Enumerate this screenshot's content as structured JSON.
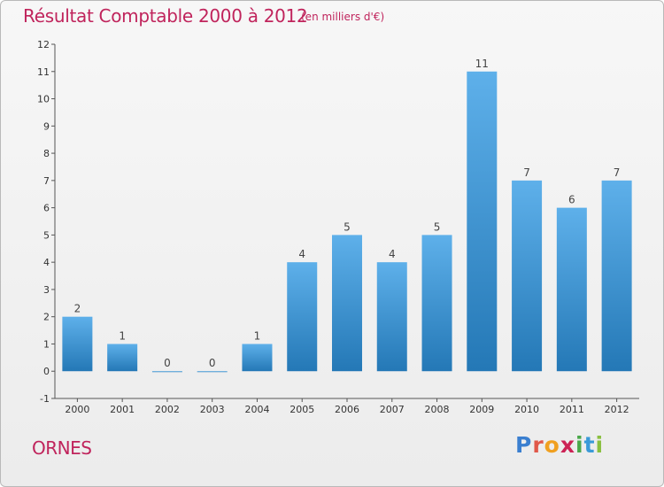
{
  "title": "Résultat Comptable 2000 à 2012",
  "subtitle": "(en milliers d'€)",
  "commune": "ORNES",
  "logo": {
    "letters": [
      {
        "ch": "P",
        "color": "#3a7fd0"
      },
      {
        "ch": "r",
        "color": "#e0584a"
      },
      {
        "ch": "o",
        "color": "#f0a020"
      },
      {
        "ch": "x",
        "color": "#cc2255"
      },
      {
        "ch": "i",
        "color": "#4aa84a"
      },
      {
        "ch": "t",
        "color": "#3a9ad8"
      },
      {
        "ch": "i",
        "color": "#8ac040"
      }
    ]
  },
  "colors": {
    "bar_top": "#5eb0ea",
    "bar_bottom": "#2478b6",
    "title": "#c0245c"
  },
  "chart_data": {
    "type": "bar",
    "title": "Résultat Comptable 2000 à 2012",
    "subtitle": "(en milliers d'€)",
    "xlabel": "",
    "ylabel": "",
    "categories": [
      "2000",
      "2001",
      "2002",
      "2003",
      "2004",
      "2005",
      "2006",
      "2007",
      "2008",
      "2009",
      "2010",
      "2011",
      "2012"
    ],
    "values": [
      2,
      1,
      0,
      0,
      1,
      4,
      5,
      4,
      5,
      11,
      7,
      6,
      7
    ],
    "ylim": [
      -1,
      12
    ],
    "yticks": [
      -1,
      0,
      1,
      2,
      3,
      4,
      5,
      6,
      7,
      8,
      9,
      10,
      11,
      12
    ],
    "grid": false
  }
}
